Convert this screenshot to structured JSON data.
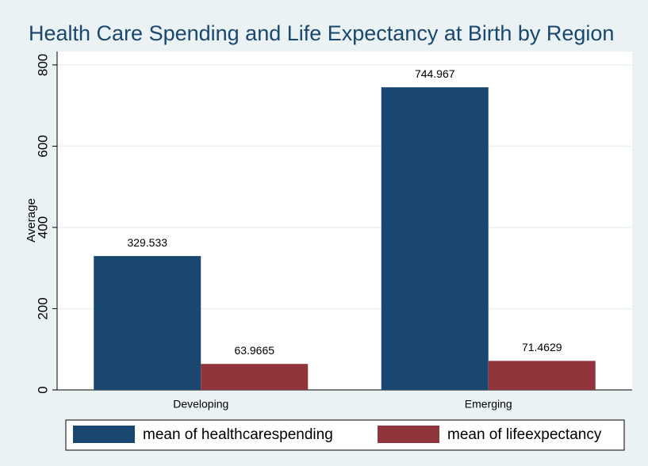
{
  "chart_data": {
    "type": "bar",
    "title": "Health Care Spending and Life Expectancy at Birth by Region",
    "y_label": "Average",
    "categories": [
      "Developing",
      "Emerging"
    ],
    "series": [
      {
        "name": "mean of healthcarespending",
        "color": "#1a476f",
        "values": [
          329.533,
          744.967
        ]
      },
      {
        "name": "mean of lifeexpectancy",
        "color": "#90353b",
        "values": [
          63.9665,
          71.4629
        ]
      }
    ],
    "ylim": [
      0,
      833
    ],
    "yticks": [
      0,
      200,
      400,
      600,
      800
    ],
    "grid": true,
    "legend": "bottom"
  }
}
